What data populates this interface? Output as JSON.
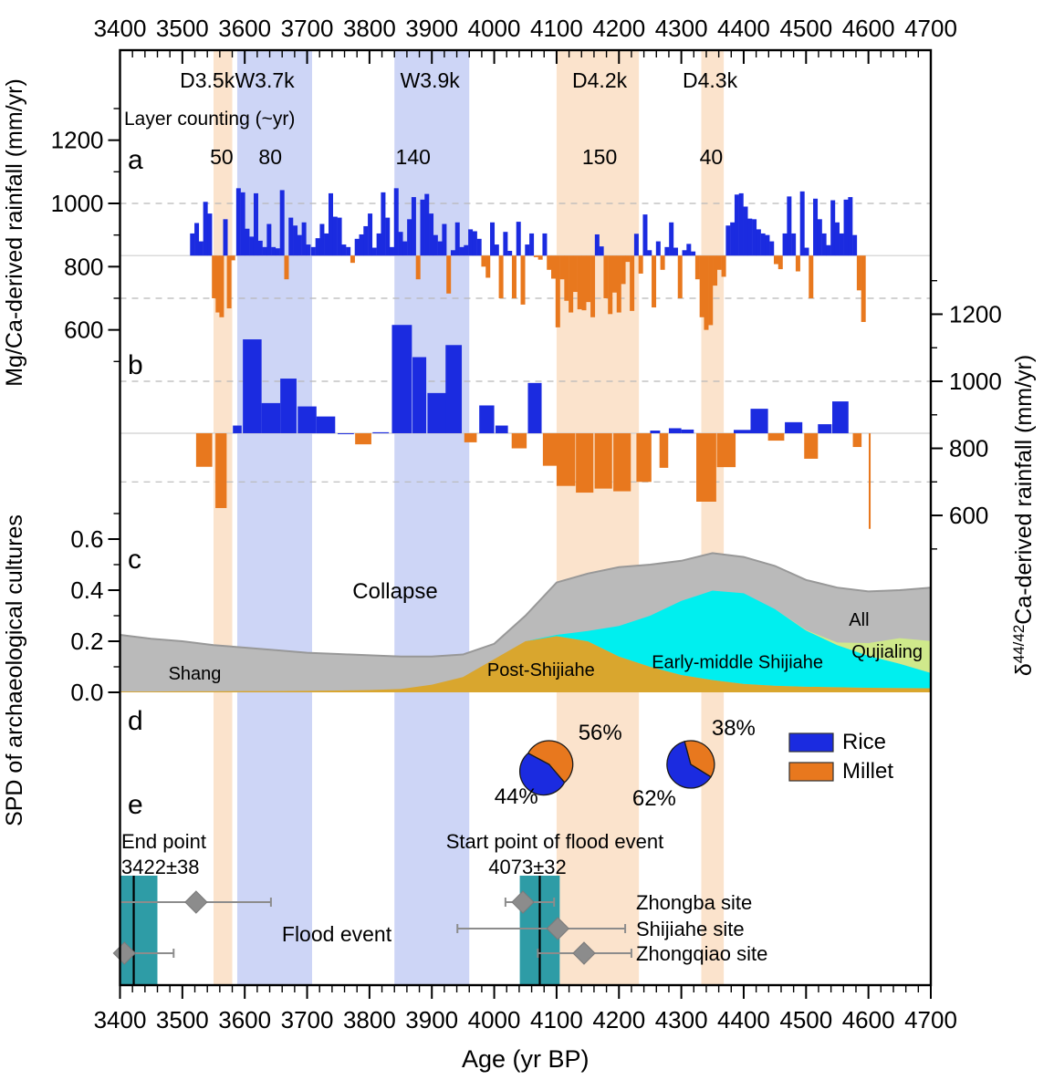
{
  "figure": {
    "panel_letters": [
      "a",
      "b",
      "c",
      "d",
      "e"
    ]
  },
  "colors": {
    "bar_blue": "#1B2BE0",
    "bar_orange": "#E8781E",
    "band_blue": "#CDD5F6",
    "band_orange": "#FBE3CC",
    "teal_box": "#2E9CA6",
    "gray_area": "#BABABA",
    "gray_edge": "#989898",
    "gold_area": "#D9A62E",
    "cyan_area": "#00EFEF",
    "green_area": "#CFE98B",
    "diamond_gray": "#8C8C8C",
    "error_gray": "#8C8C8C",
    "red_text": "#FF0000",
    "blue_text": "#1414CC",
    "orange_text": "#F08418",
    "blue_label": "#4169E1",
    "dashed_grid": "#B8B8B8",
    "baseline_gray": "#CFCFCF",
    "axis_black": "#000000"
  },
  "chart_data": {
    "type": "composite",
    "x_axis": {
      "label": "Age (yr BP)",
      "min": 3400,
      "max": 4700,
      "major_tick_step": 100,
      "minor_tick_step": 20,
      "tick_labels": [
        "3400",
        "3500",
        "3600",
        "3700",
        "3800",
        "3900",
        "4000",
        "4100",
        "4200",
        "4300",
        "4400",
        "4500",
        "4600",
        "4700"
      ]
    },
    "event_bands": [
      {
        "id": "D3.5k",
        "label": "D3.5k",
        "kind": "dry",
        "from": 3550,
        "to": 3580,
        "layer_counting": "50",
        "label_age": 3540,
        "count_age": 3563
      },
      {
        "id": "W3.7k",
        "label": "W3.7k",
        "kind": "wet",
        "from": 3588,
        "to": 3708,
        "layer_counting": "80",
        "label_age": 3632,
        "count_age": 3641
      },
      {
        "id": "W3.9k",
        "label": "W3.9k",
        "kind": "wet",
        "from": 3840,
        "to": 3960,
        "layer_counting": "140",
        "label_age": 3897,
        "count_age": 3870
      },
      {
        "id": "D4.2k",
        "label": "D4.2k",
        "kind": "dry",
        "from": 4100,
        "to": 4232,
        "layer_counting": "150",
        "label_age": 4169,
        "count_age": 4169
      },
      {
        "id": "D4.3k",
        "label": "D4.3k",
        "kind": "dry",
        "from": 4332,
        "to": 4368,
        "layer_counting": "40",
        "label_age": 4346,
        "count_age": 4348
      }
    ],
    "layer_counting_title": "Layer counting (~yr)",
    "panel_a": {
      "type": "bar",
      "ylabel": "Mg/Ca-derived rainfall (mm/yr)",
      "axis_ticks": [
        600,
        800,
        1000,
        1200
      ],
      "baseline": 835,
      "gridlines": [
        1000,
        700
      ],
      "bars_age_value": [
        [
          3516,
          905
        ],
        [
          3523,
          938
        ],
        [
          3530,
          880
        ],
        [
          3537,
          1005
        ],
        [
          3544,
          968
        ],
        [
          3551,
          700
        ],
        [
          3557,
          655
        ],
        [
          3563,
          640
        ],
        [
          3569,
          950
        ],
        [
          3575,
          668
        ],
        [
          3581,
          820
        ],
        [
          3590,
          1048
        ],
        [
          3597,
          1035
        ],
        [
          3604,
          920
        ],
        [
          3611,
          895
        ],
        [
          3618,
          1032
        ],
        [
          3625,
          882
        ],
        [
          3632,
          862
        ],
        [
          3639,
          935
        ],
        [
          3646,
          862
        ],
        [
          3653,
          858
        ],
        [
          3660,
          1042
        ],
        [
          3667,
          760
        ],
        [
          3674,
          955
        ],
        [
          3681,
          930
        ],
        [
          3688,
          900
        ],
        [
          3695,
          940
        ],
        [
          3702,
          870
        ],
        [
          3710,
          862
        ],
        [
          3717,
          890
        ],
        [
          3724,
          935
        ],
        [
          3731,
          905
        ],
        [
          3738,
          1032
        ],
        [
          3745,
          958
        ],
        [
          3752,
          955
        ],
        [
          3759,
          870
        ],
        [
          3766,
          862
        ],
        [
          3773,
          812
        ],
        [
          3780,
          888
        ],
        [
          3787,
          902
        ],
        [
          3794,
          928
        ],
        [
          3801,
          968
        ],
        [
          3808,
          860
        ],
        [
          3815,
          905
        ],
        [
          3822,
          1035
        ],
        [
          3829,
          955
        ],
        [
          3836,
          862
        ],
        [
          3843,
          1048
        ],
        [
          3850,
          910
        ],
        [
          3857,
          880
        ],
        [
          3864,
          950
        ],
        [
          3871,
          1020
        ],
        [
          3878,
          760
        ],
        [
          3885,
          1012
        ],
        [
          3892,
          1030
        ],
        [
          3899,
          968
        ],
        [
          3906,
          900
        ],
        [
          3913,
          880
        ],
        [
          3920,
          935
        ],
        [
          3927,
          715
        ],
        [
          3934,
          852
        ],
        [
          3941,
          940
        ],
        [
          3948,
          862
        ],
        [
          3955,
          868
        ],
        [
          3962,
          918
        ],
        [
          3969,
          912
        ],
        [
          3976,
          888
        ],
        [
          3983,
          800
        ],
        [
          3990,
          765
        ],
        [
          3997,
          940
        ],
        [
          4004,
          870
        ],
        [
          4011,
          700
        ],
        [
          4018,
          910
        ],
        [
          4025,
          850
        ],
        [
          4032,
          700
        ],
        [
          4039,
          942
        ],
        [
          4046,
          680
        ],
        [
          4053,
          870
        ],
        [
          4060,
          905
        ],
        [
          4067,
          830
        ],
        [
          4074,
          822
        ],
        [
          4081,
          905
        ],
        [
          4088,
          790
        ],
        [
          4095,
          762
        ],
        [
          4102,
          608
        ],
        [
          4109,
          760
        ],
        [
          4116,
          692
        ],
        [
          4123,
          655
        ],
        [
          4130,
          720
        ],
        [
          4137,
          665
        ],
        [
          4144,
          662
        ],
        [
          4151,
          688
        ],
        [
          4158,
          640
        ],
        [
          4165,
          902
        ],
        [
          4172,
          864
        ],
        [
          4179,
          700
        ],
        [
          4186,
          650
        ],
        [
          4193,
          718
        ],
        [
          4200,
          655
        ],
        [
          4207,
          745
        ],
        [
          4214,
          815
        ],
        [
          4221,
          660
        ],
        [
          4228,
          904
        ],
        [
          4235,
          778
        ],
        [
          4242,
          965
        ],
        [
          4249,
          852
        ],
        [
          4256,
          671
        ],
        [
          4263,
          880
        ],
        [
          4270,
          790
        ],
        [
          4277,
          862
        ],
        [
          4284,
          940
        ],
        [
          4291,
          860
        ],
        [
          4298,
          700
        ],
        [
          4305,
          852
        ],
        [
          4312,
          872
        ],
        [
          4319,
          848
        ],
        [
          4326,
          760
        ],
        [
          4333,
          640
        ],
        [
          4340,
          600
        ],
        [
          4347,
          615
        ],
        [
          4354,
          740
        ],
        [
          4361,
          790
        ],
        [
          4368,
          768
        ],
        [
          4375,
          930
        ],
        [
          4382,
          940
        ],
        [
          4389,
          1028
        ],
        [
          4396,
          1032
        ],
        [
          4403,
          990
        ],
        [
          4410,
          952
        ],
        [
          4417,
          950
        ],
        [
          4424,
          918
        ],
        [
          4431,
          905
        ],
        [
          4438,
          900
        ],
        [
          4445,
          880
        ],
        [
          4452,
          808
        ],
        [
          4459,
          792
        ],
        [
          4466,
          905
        ],
        [
          4473,
          1022
        ],
        [
          4480,
          905
        ],
        [
          4487,
          785
        ],
        [
          4494,
          1038
        ],
        [
          4501,
          860
        ],
        [
          4508,
          700
        ],
        [
          4515,
          1015
        ],
        [
          4522,
          950
        ],
        [
          4529,
          905
        ],
        [
          4536,
          868
        ],
        [
          4543,
          1010
        ],
        [
          4550,
          940
        ],
        [
          4557,
          905
        ],
        [
          4564,
          1012
        ],
        [
          4571,
          1020
        ],
        [
          4578,
          900
        ],
        [
          4585,
          725
        ],
        [
          4592,
          625
        ]
      ]
    },
    "panel_b": {
      "type": "bar",
      "ylabel_prefix": "δ",
      "ylabel_sup": "44/42",
      "ylabel_rest": "Ca-derived rainfall (mm/yr)",
      "axis_ticks": [
        600,
        800,
        1000,
        1200
      ],
      "baseline": 845,
      "gridlines": [
        1000,
        700
      ],
      "bars_age_value_width": [
        [
          3535,
          745,
          26
        ],
        [
          3562,
          622,
          18
        ],
        [
          3588,
          868,
          14
        ],
        [
          3612,
          1125,
          30
        ],
        [
          3642,
          935,
          30
        ],
        [
          3670,
          1008,
          26
        ],
        [
          3700,
          925,
          30
        ],
        [
          3730,
          895,
          30
        ],
        [
          3762,
          845,
          26
        ],
        [
          3790,
          812,
          26
        ],
        [
          3818,
          848,
          26
        ],
        [
          3852,
          1168,
          32
        ],
        [
          3880,
          1072,
          22
        ],
        [
          3908,
          965,
          30
        ],
        [
          3935,
          1108,
          26
        ],
        [
          3962,
          818,
          20
        ],
        [
          3988,
          928,
          24
        ],
        [
          4012,
          868,
          20
        ],
        [
          4040,
          800,
          24
        ],
        [
          4065,
          995,
          22
        ],
        [
          4090,
          748,
          24
        ],
        [
          4115,
          688,
          30
        ],
        [
          4145,
          668,
          28
        ],
        [
          4175,
          680,
          28
        ],
        [
          4205,
          672,
          28
        ],
        [
          4240,
          700,
          24
        ],
        [
          4258,
          853,
          16
        ],
        [
          4272,
          742,
          14
        ],
        [
          4290,
          860,
          20
        ],
        [
          4310,
          856,
          20
        ],
        [
          4340,
          641,
          32
        ],
        [
          4372,
          744,
          30
        ],
        [
          4398,
          855,
          28
        ],
        [
          4425,
          918,
          28
        ],
        [
          4452,
          823,
          26
        ],
        [
          4480,
          878,
          28
        ],
        [
          4508,
          769,
          22
        ],
        [
          4530,
          872,
          22
        ],
        [
          4555,
          940,
          26
        ],
        [
          4582,
          804,
          14
        ],
        [
          4602,
          560,
          3
        ]
      ]
    },
    "panel_c": {
      "type": "area",
      "ylabel": "SPD of archaeological cultures",
      "axis_ticks": [
        0.0,
        0.2,
        0.4,
        0.6
      ],
      "annotation": "Collapse",
      "ages": [
        3400,
        3450,
        3500,
        3550,
        3600,
        3650,
        3700,
        3750,
        3800,
        3850,
        3900,
        3950,
        4000,
        4050,
        4100,
        4150,
        4200,
        4250,
        4300,
        4350,
        4400,
        4450,
        4500,
        4550,
        4600,
        4650,
        4700
      ],
      "series": [
        {
          "name": "All",
          "values": [
            0.225,
            0.21,
            0.2,
            0.185,
            0.175,
            0.165,
            0.155,
            0.15,
            0.145,
            0.14,
            0.14,
            0.148,
            0.19,
            0.3,
            0.43,
            0.465,
            0.49,
            0.5,
            0.515,
            0.545,
            0.53,
            0.495,
            0.44,
            0.41,
            0.395,
            0.4,
            0.41
          ]
        },
        {
          "name": "Post-Shijiahe",
          "values": [
            0.003,
            0.003,
            0.004,
            0.004,
            0.005,
            0.005,
            0.006,
            0.007,
            0.009,
            0.013,
            0.03,
            0.06,
            0.13,
            0.2,
            0.22,
            0.2,
            0.14,
            0.1,
            0.068,
            0.048,
            0.033,
            0.026,
            0.022,
            0.02,
            0.018,
            0.017,
            0.016
          ]
        },
        {
          "name": "Early-middle Shijiahe",
          "values": [
            0,
            0,
            0,
            0,
            0,
            0,
            0,
            0,
            0,
            0,
            0,
            0,
            0,
            0,
            0.005,
            0.04,
            0.12,
            0.2,
            0.29,
            0.35,
            0.355,
            0.3,
            0.22,
            0.165,
            0.125,
            0.095,
            0.06
          ]
        },
        {
          "name": "Qujialing",
          "values": [
            0,
            0,
            0,
            0,
            0,
            0,
            0,
            0,
            0,
            0,
            0,
            0,
            0,
            0,
            0,
            0,
            0,
            0,
            0,
            0,
            0,
            0,
            0.002,
            0.01,
            0.05,
            0.1,
            0.125
          ]
        }
      ],
      "area_labels": [
        {
          "text": "Shang",
          "age": 3520,
          "y_value": 0.075
        },
        {
          "text": "Post-Shijiahe",
          "age": 4075,
          "y_value": 0.09
        },
        {
          "text": "Early-middle Shijiahe",
          "age": 4390,
          "y_value": 0.12
        },
        {
          "text": "All",
          "age": 4585,
          "y_value": 0.285
        },
        {
          "text": "Qujialing",
          "age": 4630,
          "y_value": 0.16
        }
      ]
    },
    "panel_d": {
      "type": "pie",
      "pies": [
        {
          "center_age": 4088,
          "rice_pct": 44,
          "millet_pct": 56,
          "rice_label": "44%",
          "millet_label": "56%",
          "millet_start_deg": 298
        },
        {
          "center_age": 4315,
          "rice_pct": 62,
          "millet_pct": 38,
          "rice_label": "62%",
          "millet_label": "38%",
          "millet_start_deg": 345
        }
      ],
      "legend": [
        {
          "label": "Rice",
          "color_key": "bar_blue"
        },
        {
          "label": "Millet",
          "color_key": "bar_orange"
        }
      ]
    },
    "panel_e": {
      "type": "event-ranges",
      "flood_label": "Flood event",
      "end_point": {
        "label_line1": "End point",
        "label_line2": "3422±38",
        "age": 3422,
        "box_from": 3384,
        "box_to": 3460
      },
      "start_point": {
        "label_line1": "Start point of flood event",
        "label_line2": "4073±32",
        "age": 4073,
        "box_from": 4041,
        "box_to": 4105
      },
      "sites": [
        {
          "name": "Zhongba site",
          "end": {
            "mean": 3522,
            "lo": 3384,
            "hi": 3642
          },
          "start": {
            "mean": 4046,
            "lo": 4018,
            "hi": 4096
          }
        },
        {
          "name": "Shijiahe site",
          "start": {
            "mean": 4102,
            "lo": 3941,
            "hi": 4210
          }
        },
        {
          "name": "Zhongqiao site",
          "end": {
            "mean": 3407,
            "lo": 3384,
            "hi": 3486
          },
          "start": {
            "mean": 4144,
            "lo": 4070,
            "hi": 4220
          }
        }
      ]
    }
  }
}
